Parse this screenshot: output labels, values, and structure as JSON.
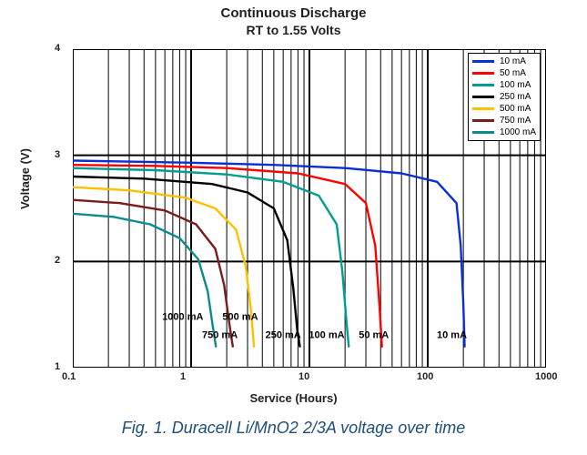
{
  "figure": {
    "title_line1": "Continuous Discharge",
    "title_line2": "RT to 1.55 Volts",
    "title_fontsize": 15,
    "caption": "Fig. 1. Duracell Li/MnO2 2/3A voltage over time",
    "caption_color": "#1f4e79",
    "caption_fontsize": 18
  },
  "chart": {
    "type": "line",
    "x_scale": "log",
    "y_scale": "linear",
    "xlim": [
      0.1,
      1000
    ],
    "ylim": [
      1,
      4
    ],
    "xlabel": "Service (Hours)",
    "ylabel": "Voltage (V)",
    "label_fontsize": 13,
    "label_fontweight": 700,
    "xticks": [
      0.1,
      1,
      10,
      100,
      1000
    ],
    "xtick_labels": [
      "0.1",
      "1",
      "10",
      "100",
      "1000"
    ],
    "yticks": [
      1,
      2,
      3,
      4
    ],
    "ytick_labels": [
      "1",
      "2",
      "3",
      "4"
    ],
    "background_color": "#ffffff",
    "frame_color": "#000000",
    "major_grid_color": "#000000",
    "major_grid_width": 2,
    "minor_grid_color": "#000000",
    "minor_grid_width": 1,
    "minor_grid_pattern": "log",
    "line_width": 2.4,
    "series": [
      {
        "name": "10 mA",
        "label": "10 mA",
        "color": "#0b2fd6",
        "points": [
          [
            0.1,
            2.95
          ],
          [
            1,
            2.93
          ],
          [
            5,
            2.91
          ],
          [
            20,
            2.88
          ],
          [
            60,
            2.83
          ],
          [
            120,
            2.75
          ],
          [
            175,
            2.55
          ],
          [
            190,
            2.15
          ],
          [
            200,
            1.6
          ],
          [
            205,
            1.2
          ]
        ]
      },
      {
        "name": "50 mA",
        "label": "50 mA",
        "color": "#ff0000",
        "points": [
          [
            0.1,
            2.91
          ],
          [
            0.5,
            2.9
          ],
          [
            2,
            2.88
          ],
          [
            8,
            2.83
          ],
          [
            20,
            2.73
          ],
          [
            30,
            2.55
          ],
          [
            36,
            2.15
          ],
          [
            39,
            1.6
          ],
          [
            41,
            1.2
          ]
        ]
      },
      {
        "name": "100 mA",
        "label": "100 mA",
        "color": "#009e8f",
        "points": [
          [
            0.1,
            2.88
          ],
          [
            0.5,
            2.86
          ],
          [
            2,
            2.82
          ],
          [
            6,
            2.75
          ],
          [
            12,
            2.62
          ],
          [
            17,
            2.35
          ],
          [
            19,
            1.9
          ],
          [
            20.5,
            1.45
          ],
          [
            21.5,
            1.2
          ]
        ]
      },
      {
        "name": "250 mA",
        "label": "250 mA",
        "color": "#000000",
        "points": [
          [
            0.1,
            2.8
          ],
          [
            0.4,
            2.78
          ],
          [
            1.5,
            2.73
          ],
          [
            3,
            2.65
          ],
          [
            5,
            2.5
          ],
          [
            6.5,
            2.2
          ],
          [
            7.3,
            1.75
          ],
          [
            7.9,
            1.35
          ],
          [
            8.3,
            1.2
          ]
        ]
      },
      {
        "name": "500 mA",
        "label": "500 mA",
        "color": "#ffc000",
        "points": [
          [
            0.1,
            2.7
          ],
          [
            0.3,
            2.67
          ],
          [
            0.9,
            2.6
          ],
          [
            1.6,
            2.5
          ],
          [
            2.4,
            2.3
          ],
          [
            2.9,
            1.95
          ],
          [
            3.2,
            1.55
          ],
          [
            3.4,
            1.2
          ]
        ]
      },
      {
        "name": "750 mA",
        "label": "750 mA",
        "color": "#7a1c1c",
        "points": [
          [
            0.1,
            2.58
          ],
          [
            0.25,
            2.55
          ],
          [
            0.6,
            2.48
          ],
          [
            1.1,
            2.35
          ],
          [
            1.6,
            2.12
          ],
          [
            1.9,
            1.78
          ],
          [
            2.1,
            1.42
          ],
          [
            2.25,
            1.2
          ]
        ]
      },
      {
        "name": "1000 mA",
        "label": "1000 mA",
        "color": "#0d8a8f",
        "points": [
          [
            0.1,
            2.45
          ],
          [
            0.22,
            2.42
          ],
          [
            0.45,
            2.35
          ],
          [
            0.8,
            2.22
          ],
          [
            1.15,
            2.02
          ],
          [
            1.38,
            1.72
          ],
          [
            1.52,
            1.4
          ],
          [
            1.62,
            1.2
          ]
        ]
      }
    ],
    "curve_labels": [
      {
        "text": "10 mA",
        "x": 160,
        "y": 1.28
      },
      {
        "text": "50 mA",
        "x": 35,
        "y": 1.28
      },
      {
        "text": "100 mA",
        "x": 14,
        "y": 1.28
      },
      {
        "text": "250 mA",
        "x": 6.0,
        "y": 1.28
      },
      {
        "text": "500 mA",
        "x": 2.6,
        "y": 1.45
      },
      {
        "text": "750 mA",
        "x": 1.75,
        "y": 1.28
      },
      {
        "text": "1000 mA",
        "x": 0.85,
        "y": 1.45
      }
    ],
    "legend": {
      "position": "top-right",
      "border_color": "#000000",
      "background": "#ffffff",
      "fontsize": 10,
      "swatch_width": 24,
      "swatch_height": 3
    }
  }
}
